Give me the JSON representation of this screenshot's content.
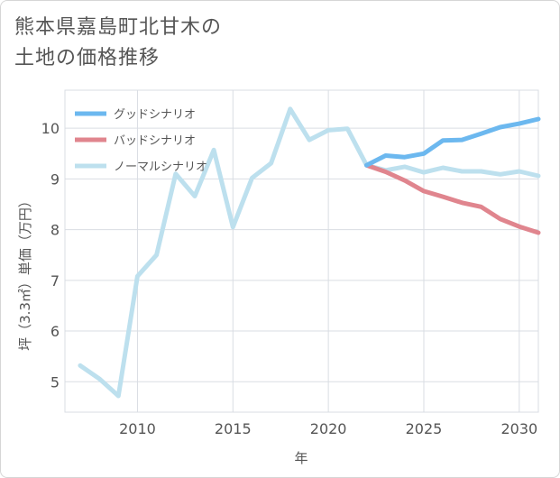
{
  "title_lines": [
    "熊本県嘉島町北甘木の",
    "土地の価格推移"
  ],
  "chart_data": {
    "type": "line",
    "xlabel": "年",
    "ylabel": "坪（3.3㎡）単価（万円）",
    "xlim": [
      2006.2,
      2031
    ],
    "ylim": [
      4.4,
      10.75
    ],
    "xticks": [
      2010,
      2015,
      2020,
      2025,
      2030
    ],
    "yticks": [
      5,
      6,
      7,
      8,
      9,
      10
    ],
    "grid": true,
    "legend_position": "top-left",
    "series": [
      {
        "name": "グッドシナリオ",
        "color": "#6cb8ef",
        "x": [
          2022,
          2023,
          2024,
          2025,
          2026,
          2027,
          2028,
          2029,
          2030,
          2031
        ],
        "y": [
          9.27,
          9.46,
          9.43,
          9.5,
          9.76,
          9.77,
          9.89,
          10.02,
          10.09,
          10.18
        ]
      },
      {
        "name": "バッドシナリオ",
        "color": "#e0858e",
        "x": [
          2022,
          2023,
          2024,
          2025,
          2026,
          2027,
          2028,
          2029,
          2030,
          2031
        ],
        "y": [
          9.27,
          9.14,
          8.97,
          8.76,
          8.65,
          8.53,
          8.45,
          8.21,
          8.06,
          7.94
        ]
      },
      {
        "name": "ノーマルシナリオ",
        "color": "#bde0ee",
        "x": [
          2007,
          2008,
          2009,
          2010,
          2011,
          2012,
          2013,
          2014,
          2015,
          2016,
          2017,
          2018,
          2019,
          2020,
          2021,
          2022,
          2023,
          2024,
          2025,
          2026,
          2027,
          2028,
          2029,
          2030,
          2031
        ],
        "y": [
          5.32,
          5.06,
          4.72,
          7.08,
          7.5,
          9.1,
          8.66,
          9.57,
          8.05,
          9.02,
          9.31,
          10.38,
          9.77,
          9.96,
          9.99,
          9.27,
          9.17,
          9.24,
          9.13,
          9.22,
          9.15,
          9.15,
          9.09,
          9.15,
          9.06
        ]
      }
    ]
  }
}
